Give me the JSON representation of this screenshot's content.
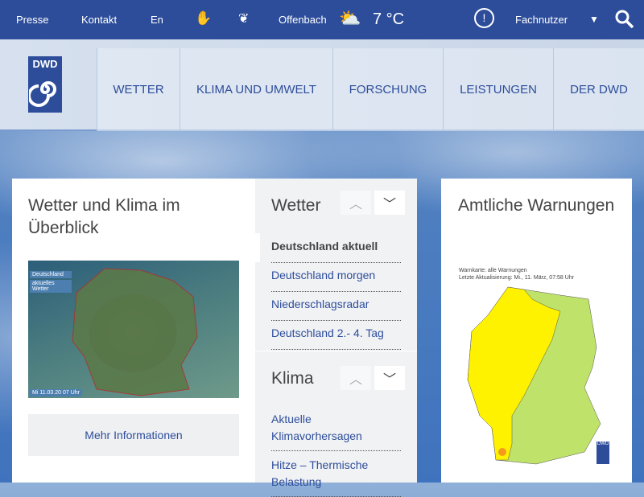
{
  "topbar": {
    "presse": "Presse",
    "kontakt": "Kontakt",
    "lang": "En",
    "city": "Offenbach",
    "temp": "7 °C",
    "user_menu": "Fachnutzer",
    "dropdown": "▼"
  },
  "logo": {
    "text": "DWD"
  },
  "nav": [
    "WETTER",
    "KLIMA UND UMWELT",
    "FORSCHUNG",
    "LEISTUNGEN",
    "DER DWD"
  ],
  "overview": {
    "title": "Wetter und Klima im Überblick",
    "map_label1": "Deutschland",
    "map_label2": "aktuelles Wetter",
    "map_time": "Mi 11.03.20 07 Uhr",
    "button": "Mehr Informationen"
  },
  "wetter": {
    "title": "Wetter",
    "links": [
      "Deutschland aktuell",
      "Deutschland morgen",
      "Niederschlagsradar",
      "Deutschland 2.- 4. Tag"
    ]
  },
  "klima": {
    "title": "Klima",
    "links": [
      "Aktuelle Klimavorhersagen",
      "Hitze – Thermische Belastung"
    ]
  },
  "warnungen": {
    "title": "Amtliche Warnungen",
    "map_title": "Warnkarte: alle Warnungen",
    "map_update": "Letzte Aktualisierung: Mi., 11. März, 07:58 Uhr",
    "colors": {
      "none": "#bfe26a",
      "yellow": "#fff200",
      "orange": "#f39a1c"
    }
  }
}
